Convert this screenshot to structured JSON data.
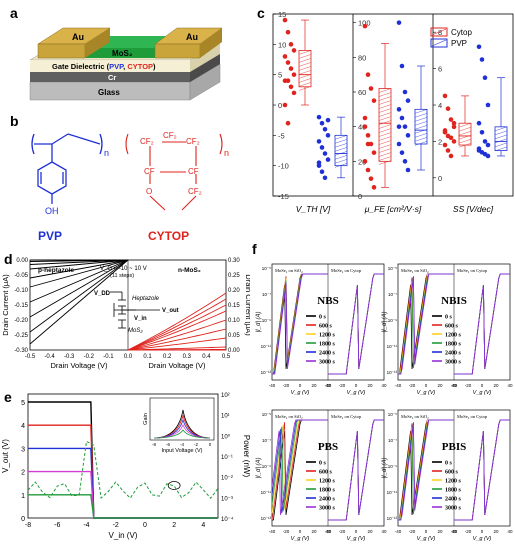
{
  "panels": {
    "a": {
      "letter": "a",
      "layers": {
        "electrode_left": "Au",
        "electrode_right": "Au",
        "channel": "MoS₂",
        "dielectric": "Gate Dielectric (",
        "dielectric_pvp": "PVP",
        "dielectric_sep": ", ",
        "dielectric_cytop": "CYTOP",
        "dielectric_close": ")",
        "gate": "Cr",
        "substrate": "Glass"
      },
      "colors": {
        "gold": "#c8a43a",
        "channel": "#27a84a",
        "pvp": "#1f31d6",
        "cytop": "#e0231d"
      }
    },
    "b": {
      "letter": "b",
      "pvp": {
        "name": "PVP",
        "n": "n",
        "oh": "OH"
      },
      "cytop": {
        "name": "CYTOP",
        "n": "n",
        "atoms": [
          "CF₂",
          "CF₂",
          "CF₂",
          "CF",
          "CF",
          "O",
          "CF₂"
        ]
      }
    },
    "c": {
      "letter": "c",
      "legend": [
        "Cytop",
        "PVP"
      ],
      "colors": {
        "cytop": "#e0231d",
        "pvp": "#1f31d6"
      }
    },
    "d": {
      "letter": "d",
      "left_label": "p-heptazole",
      "right_label": "n-MoS₂",
      "bias_text": "V_G = -10 ~ 10 V",
      "steps_text": "(11 steps)",
      "circuit": {
        "vdd": "V_DD",
        "vout": "V_out",
        "vin": "V_in",
        "top": "Heptazole",
        "bottom": "MoS₂"
      }
    },
    "e": {
      "letter": "e"
    },
    "f": {
      "letter": "f",
      "sub": [
        {
          "title": "NBS",
          "left_tag": "MoSe₂ on SiO₂",
          "right_tag": "MoSe₂ on Cytop"
        },
        {
          "title": "NBIS",
          "left_tag": "MoSe₂ on SiO₂",
          "right_tag": "MoSe₂ on Cytop"
        },
        {
          "title": "PBS",
          "left_tag": "MoSe₂ on SiO₂",
          "right_tag": "MoSe₂ on Cytop"
        },
        {
          "title": "PBIS",
          "left_tag": "MoSe₂ on SiO₂",
          "right_tag": "MoSe₂ on Cytop"
        }
      ],
      "times": [
        "0 s",
        "600 s",
        "1200 s",
        "1800 s",
        "2400 s",
        "3000 s"
      ],
      "time_colors": [
        "#000000",
        "#e0231d",
        "#ffd21f",
        "#1f9c3a",
        "#1f31d6",
        "#9b30d9"
      ],
      "ylabel": "|I_d| (A)",
      "xlabel": "V_g (V)"
    }
  },
  "chart_data": [
    {
      "type": "scatter",
      "panel": "c",
      "subplots": [
        {
          "xlabel": "V_TH [V]",
          "ylim": [
            -15,
            15
          ],
          "yticks": [
            -15,
            -10,
            -5,
            0,
            5,
            10,
            15
          ],
          "cytop_points": [
            14,
            12,
            10,
            9,
            8,
            7,
            6,
            5,
            4,
            4,
            3,
            2,
            0,
            -3
          ],
          "pvp_points": [
            -2,
            -3,
            -4,
            -5,
            -6,
            -7,
            -8,
            -9,
            -10,
            -11,
            -12,
            -2.5,
            -9.5
          ],
          "cytop_box": {
            "q1": 3,
            "median": 5,
            "q3": 9,
            "whisker_low": 0,
            "whisker_high": 14
          },
          "pvp_box": {
            "q1": -10,
            "median": -8,
            "q3": -5,
            "whisker_low": -12,
            "whisker_high": -2
          }
        },
        {
          "xlabel": "μ_FE [cm²/V·s]",
          "ylim": [
            0,
            105
          ],
          "yticks": [
            0,
            20,
            40,
            60,
            80,
            100
          ],
          "cytop_points": [
            98,
            70,
            62,
            55,
            40,
            35,
            30,
            25,
            20,
            15,
            10,
            5,
            45,
            30
          ],
          "pvp_points": [
            100,
            75,
            60,
            55,
            50,
            45,
            40,
            35,
            30,
            25,
            20,
            15,
            40
          ],
          "cytop_box": {
            "q1": 20,
            "median": 42,
            "q3": 62,
            "whisker_low": 5,
            "whisker_high": 88
          },
          "pvp_box": {
            "q1": 30,
            "median": 38,
            "q3": 50,
            "whisker_low": 15,
            "whisker_high": 75
          }
        },
        {
          "xlabel": "SS [V/dec]",
          "ylim": [
            -1,
            9
          ],
          "yticks": [
            0,
            2,
            4,
            6,
            8
          ],
          "cytop_points": [
            4.5,
            3.8,
            3.2,
            2.8,
            2.5,
            2.3,
            2.2,
            2.0,
            1.8,
            1.5,
            1.2,
            3.0,
            2.6
          ],
          "pvp_points": [
            7.2,
            6.5,
            5.5,
            4.0,
            3.0,
            2.5,
            2.0,
            1.8,
            1.5,
            1.4,
            1.3,
            1.2,
            1.6
          ],
          "cytop_box": {
            "q1": 1.8,
            "median": 2.3,
            "q3": 3.0,
            "whisker_low": 1.2,
            "whisker_high": 4.5
          },
          "pvp_box": {
            "q1": 1.5,
            "median": 2.0,
            "q3": 2.8,
            "whisker_low": 1.2,
            "whisker_high": 5.5
          }
        }
      ],
      "legend": [
        "Cytop",
        "PVP"
      ]
    },
    {
      "type": "line",
      "panel": "d",
      "xlabel_left": "Drain Voltage (V)",
      "xlabel_right": "Drain Voltage (V)",
      "ylabel_left": "Drain Current (μA)",
      "ylabel_right": "Drain Current (μA)",
      "xlim_left": [
        -0.5,
        0
      ],
      "xlim_right": [
        0,
        0.5
      ],
      "ylim_left": [
        -0.3,
        0
      ],
      "ylim_right": [
        0,
        0.3
      ],
      "xticks_left": [
        -0.5,
        -0.4,
        -0.3,
        -0.2,
        -0.1,
        0.0
      ],
      "xticks_right": [
        0.0,
        0.1,
        0.2,
        0.3,
        0.4,
        0.5
      ],
      "yticks_left": [
        -0.3,
        -0.25,
        -0.2,
        -0.15,
        -0.1,
        -0.05,
        0.0
      ],
      "yticks_right": [
        0.0,
        0.05,
        0.1,
        0.15,
        0.2,
        0.25,
        0.3
      ],
      "left_end_currents": [
        -0.28,
        -0.24,
        -0.19,
        -0.14,
        -0.09,
        -0.06,
        -0.03,
        -0.015,
        -0.005,
        0,
        0
      ],
      "right_end_currents": [
        0,
        0,
        0.002,
        0.01,
        0.04,
        0.07,
        0.1,
        0.13,
        0.15,
        0.17,
        0.19
      ]
    },
    {
      "type": "line",
      "panel": "e",
      "xlabel": "V_in (V)",
      "ylabel_left": "V_out (V)",
      "ylabel_right": "Power (nW)",
      "xlim": [
        -8,
        5
      ],
      "ylim_left": [
        0,
        5
      ],
      "xticks": [
        -8,
        -6,
        -4,
        -2,
        0,
        2,
        4
      ],
      "yticks_left": [
        0,
        1,
        2,
        3,
        4,
        5
      ],
      "yticks_right_labels": [
        "10⁻⁴",
        "10⁻³",
        "10⁻²",
        "10⁻¹",
        "10⁰",
        "10¹",
        "10²"
      ],
      "series": [
        {
          "vdd": 5,
          "color": "#000000"
        },
        {
          "vdd": 4,
          "color": "#e0231d"
        },
        {
          "vdd": 3,
          "color": "#1f31d6"
        },
        {
          "vdd": 2,
          "color": "#d63bd3"
        },
        {
          "vdd": 1,
          "color": "#1f9c3a"
        }
      ],
      "inset": {
        "xlabel": "Input Voltage (V)",
        "ylabel": "Gain",
        "xticks": [
          -8,
          -6,
          -4,
          -2,
          0
        ]
      }
    },
    {
      "type": "line",
      "panel": "f",
      "xlim": [
        -40,
        40
      ],
      "xticks": [
        -40,
        -20,
        0,
        20,
        40
      ],
      "yticks_labels": [
        "10⁻¹³",
        "10⁻¹¹",
        "10⁻⁹",
        "10⁻⁷",
        "10⁻⁵"
      ]
    }
  ]
}
